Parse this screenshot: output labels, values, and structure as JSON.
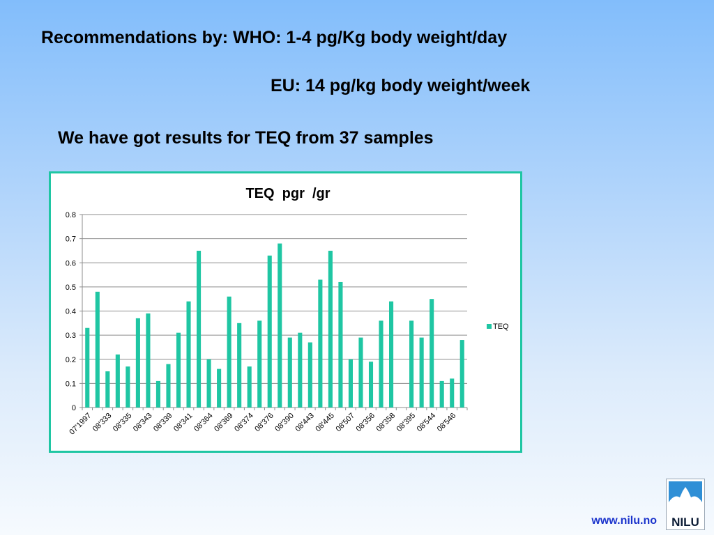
{
  "header": {
    "line1": "Recommendations by: WHO: 1-4 pg/Kg body weight/day",
    "line2": "EU: 14 pg/kg body weight/week",
    "line3": "We have got results for TEQ from 37 samples"
  },
  "chart_data": {
    "type": "bar",
    "title": "TEQ  pgr  /gr",
    "xlabel": "",
    "ylabel": "",
    "ylim": [
      0,
      0.8
    ],
    "yticks": [
      "0",
      "0.1",
      "0.2",
      "0.3",
      "0.4",
      "0.5",
      "0.6",
      "0.7",
      "0.8"
    ],
    "grid": true,
    "legend": "right",
    "x_tick_labels": [
      "07'1997",
      "08'333",
      "08'335",
      "08'343",
      "08'339",
      "08'341",
      "08'364",
      "08'369",
      "08'374",
      "08'376",
      "08'390",
      "08'443",
      "08'445",
      "08'507",
      "08'356",
      "08'358",
      "08'395",
      "08'544",
      "08'546"
    ],
    "series": [
      {
        "name": "TEQ",
        "color": "#1fc6a3",
        "values": [
          0.33,
          0.48,
          0.15,
          0.22,
          0.17,
          0.37,
          0.39,
          0.11,
          0.18,
          0.31,
          0.44,
          0.65,
          0.2,
          0.16,
          0.46,
          0.35,
          0.17,
          0.36,
          0.63,
          0.68,
          0.29,
          0.31,
          0.27,
          0.53,
          0.65,
          0.52,
          0.2,
          0.29,
          0.19,
          0.36,
          0.44,
          0,
          0.36,
          0.29,
          0.45,
          0.11,
          0.12,
          0.28
        ]
      }
    ]
  },
  "footer": {
    "url": "www.nilu.no",
    "logo_text": "NILU"
  }
}
